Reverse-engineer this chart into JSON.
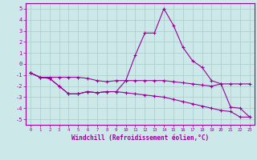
{
  "x": [
    0,
    1,
    2,
    3,
    4,
    5,
    6,
    7,
    8,
    9,
    10,
    11,
    12,
    13,
    14,
    15,
    16,
    17,
    18,
    19,
    20,
    21,
    22,
    23
  ],
  "line1": [
    -0.8,
    -1.2,
    -1.2,
    -1.2,
    -1.2,
    -1.2,
    -1.3,
    -1.5,
    -1.6,
    -1.5,
    -1.5,
    -1.5,
    -1.5,
    -1.5,
    -1.5,
    -1.6,
    -1.7,
    -1.8,
    -1.9,
    -2.0,
    -1.8,
    -1.8,
    -1.8,
    -1.8
  ],
  "line2": [
    -0.8,
    -1.2,
    -1.3,
    -2.0,
    -2.7,
    -2.7,
    -2.5,
    -2.6,
    -2.5,
    -2.5,
    -1.5,
    0.8,
    2.8,
    2.8,
    5.0,
    3.5,
    1.5,
    0.3,
    -0.3,
    -1.5,
    -1.8,
    -3.9,
    -4.0,
    -4.8
  ],
  "line3": [
    -0.8,
    -1.2,
    -1.3,
    -2.0,
    -2.7,
    -2.7,
    -2.5,
    -2.6,
    -2.5,
    -2.5,
    -2.6,
    -2.7,
    -2.8,
    -2.9,
    -3.0,
    -3.2,
    -3.4,
    -3.6,
    -3.8,
    -4.0,
    -4.2,
    -4.3,
    -4.8,
    -4.8
  ],
  "color": "#990099",
  "bg_color": "#cce8e8",
  "grid_color": "#aacccc",
  "xlabel": "Windchill (Refroidissement éolien,°C)",
  "xlim": [
    -0.5,
    23.5
  ],
  "ylim": [
    -5.5,
    5.5
  ],
  "yticks": [
    -5,
    -4,
    -3,
    -2,
    -1,
    0,
    1,
    2,
    3,
    4,
    5
  ],
  "xticks": [
    0,
    1,
    2,
    3,
    4,
    5,
    6,
    7,
    8,
    9,
    10,
    11,
    12,
    13,
    14,
    15,
    16,
    17,
    18,
    19,
    20,
    21,
    22,
    23
  ]
}
